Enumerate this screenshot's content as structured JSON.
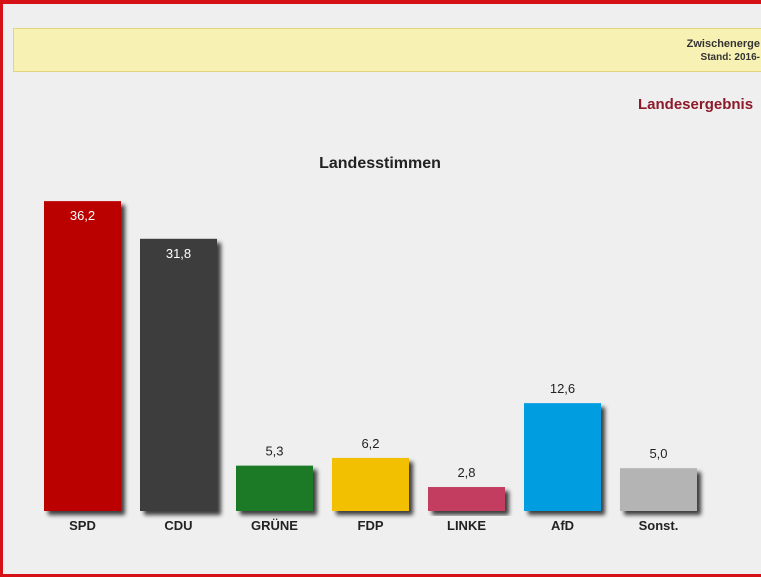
{
  "notice": {
    "line1": "Zwischenerge",
    "line2": "Stand: 2016-"
  },
  "region_title": "Landesergebnis",
  "chart_data": {
    "type": "bar",
    "title": "Landesstimmen",
    "categories": [
      "SPD",
      "CDU",
      "GRÜNE",
      "FDP",
      "LINKE",
      "AfD",
      "Sonst."
    ],
    "values": [
      36.2,
      31.8,
      5.3,
      6.2,
      2.8,
      12.6,
      5.0
    ],
    "value_labels": [
      "36,2",
      "31,8",
      "5,3",
      "6,2",
      "2,8",
      "12,6",
      "5,0"
    ],
    "colors": [
      "#bb0000",
      "#3c3c3c",
      "#1f7a26",
      "#f2c000",
      "#c23c5e",
      "#009ee0",
      "#b4b4b4"
    ],
    "label_inside": [
      true,
      true,
      false,
      false,
      false,
      false,
      false
    ],
    "xlabel": "",
    "ylabel": "",
    "grid": false,
    "legend": "none"
  }
}
